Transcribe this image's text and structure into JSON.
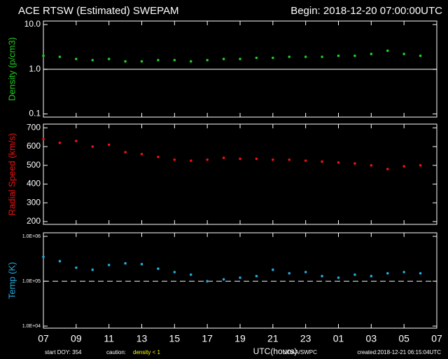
{
  "header": {
    "title": "ACE RTSW (Estimated) SWEPAM",
    "begin": "Begin: 2018-12-20 07:00:00UTC"
  },
  "chart_data": [
    {
      "type": "scatter",
      "ylabel": "Density (p/cm3)",
      "log": true,
      "ylim": [
        0.085,
        12
      ],
      "yticks": [
        0.1,
        {
          "value": 1,
          "label": "1.0"
        },
        {
          "value": 10,
          "label": "10.0"
        }
      ],
      "reference_line": 1,
      "reference_style": "solid",
      "xlim": [
        0,
        24
      ],
      "x": [
        0,
        1,
        2,
        3,
        4,
        5,
        6,
        7,
        8,
        9,
        10,
        11,
        12,
        13,
        14,
        15,
        16,
        17,
        18,
        19,
        20,
        21,
        22,
        23
      ],
      "series": [
        {
          "name": "Density",
          "color": "#22cc22",
          "values": [
            2.0,
            1.9,
            1.7,
            1.6,
            1.7,
            1.5,
            1.5,
            1.6,
            1.6,
            1.5,
            1.6,
            1.7,
            1.7,
            1.8,
            1.8,
            1.9,
            1.9,
            1.9,
            2.0,
            2.0,
            2.2,
            2.6,
            2.2,
            2.0
          ]
        }
      ]
    },
    {
      "type": "scatter",
      "ylabel": "Radial Speed (km/s)",
      "log": false,
      "ylim": [
        185,
        720
      ],
      "yticks": [
        200,
        300,
        400,
        500,
        600,
        700
      ],
      "xlim": [
        0,
        24
      ],
      "x": [
        0,
        1,
        2,
        3,
        4,
        5,
        6,
        7,
        8,
        9,
        10,
        11,
        12,
        13,
        14,
        15,
        16,
        17,
        18,
        19,
        20,
        21,
        22,
        23
      ],
      "series": [
        {
          "name": "Radial Speed",
          "color": "#ee1111",
          "values": [
            640,
            620,
            630,
            600,
            610,
            570,
            560,
            545,
            530,
            525,
            530,
            540,
            535,
            535,
            530,
            530,
            525,
            520,
            515,
            510,
            500,
            480,
            495,
            500
          ]
        }
      ]
    },
    {
      "type": "scatter",
      "ylabel": "Temp (K)",
      "log": true,
      "ylim": [
        9000,
        1200000
      ],
      "yticks": [
        {
          "value": 10000,
          "label": "1.0E+04"
        },
        {
          "value": 100000,
          "label": "1.0E+05"
        },
        {
          "value": 1000000,
          "label": "1.0E+06"
        }
      ],
      "reference_line": 100000,
      "reference_style": "dashed",
      "xlim": [
        0,
        24
      ],
      "xticks": [
        {
          "value": 0,
          "label": "07"
        },
        {
          "value": 2,
          "label": "09"
        },
        {
          "value": 4,
          "label": "11"
        },
        {
          "value": 6,
          "label": "13"
        },
        {
          "value": 8,
          "label": "15"
        },
        {
          "value": 10,
          "label": "17"
        },
        {
          "value": 12,
          "label": "19"
        },
        {
          "value": 14,
          "label": "21"
        },
        {
          "value": 16,
          "label": "23"
        },
        {
          "value": 18,
          "label": "01"
        },
        {
          "value": 20,
          "label": "03"
        },
        {
          "value": 22,
          "label": "05"
        },
        {
          "value": 24,
          "label": "07"
        }
      ],
      "xlabel": "UTC(hours)",
      "x": [
        0,
        1,
        2,
        3,
        4,
        5,
        6,
        7,
        8,
        9,
        10,
        11,
        12,
        13,
        14,
        15,
        16,
        17,
        18,
        19,
        20,
        21,
        22,
        23
      ],
      "series": [
        {
          "name": "Temp",
          "color": "#22aadd",
          "values": [
            350000,
            280000,
            200000,
            180000,
            230000,
            250000,
            240000,
            190000,
            160000,
            140000,
            100000,
            110000,
            120000,
            130000,
            180000,
            150000,
            160000,
            130000,
            120000,
            140000,
            130000,
            150000,
            160000,
            150000
          ]
        }
      ]
    }
  ],
  "footer": {
    "doy": "start DOY: 354",
    "caution": "caution:",
    "caution_value": "density < 1",
    "source": "NOAA/SWPC",
    "created": "created:2018-12-21 06:15:04UTC"
  }
}
